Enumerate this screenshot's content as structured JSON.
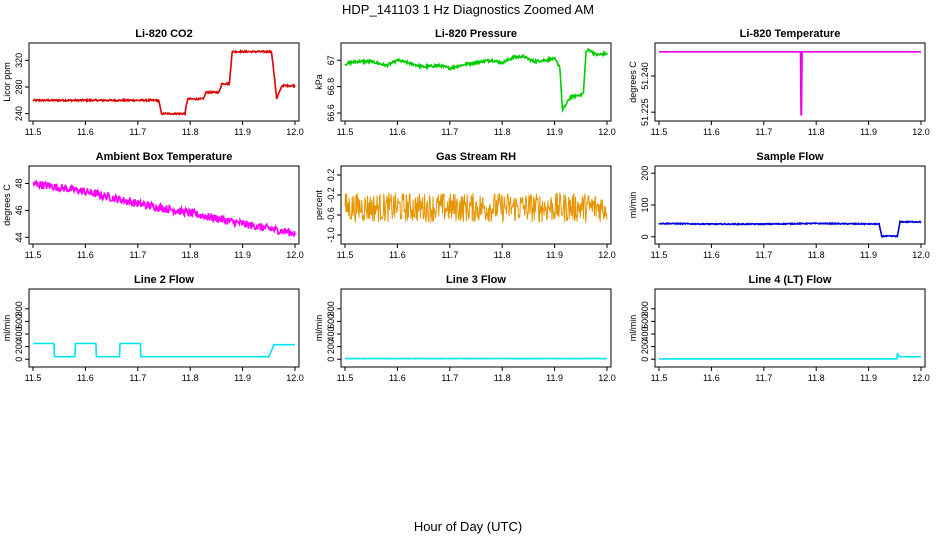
{
  "figure": {
    "title": "HDP_141103  1 Hz Diagnostics Zoomed AM",
    "xlabel": "Hour of Day (UTC)"
  },
  "chart_data": [
    {
      "type": "line",
      "title": "Li-820 CO2",
      "ylabel": "Licor ppm",
      "color": "#dd0000",
      "xlim": [
        11.5,
        12.0
      ],
      "ylim": [
        235,
        340
      ],
      "xticks": [
        "11.5",
        "11.6",
        "11.7",
        "11.8",
        "11.9",
        "12.0"
      ],
      "yticks": [
        240,
        280,
        320
      ],
      "x": [
        11.5,
        11.74,
        11.745,
        11.79,
        11.795,
        11.825,
        11.83,
        11.855,
        11.86,
        11.875,
        11.88,
        11.955,
        11.96,
        11.965,
        11.975,
        12.0
      ],
      "y": [
        260,
        260,
        240,
        240,
        262,
        262,
        272,
        272,
        285,
        285,
        333,
        333,
        300,
        262,
        282,
        282
      ],
      "noise": 1.2
    },
    {
      "type": "line",
      "title": "Li-820 Pressure",
      "ylabel": "kPa",
      "color": "#00cc00",
      "xlim": [
        11.5,
        12.0
      ],
      "ylim": [
        66.57,
        67.1
      ],
      "xticks": [
        "11.5",
        "11.6",
        "11.7",
        "11.8",
        "11.9",
        "12.0"
      ],
      "yticks": [
        66.6,
        66.8,
        67.0
      ],
      "x": [
        11.5,
        11.52,
        11.55,
        11.58,
        11.6,
        11.62,
        11.65,
        11.68,
        11.7,
        11.73,
        11.76,
        11.78,
        11.8,
        11.82,
        11.84,
        11.86,
        11.88,
        11.9,
        11.91,
        11.915,
        11.93,
        11.94,
        11.95,
        11.955,
        11.96,
        11.965,
        11.98,
        12.0
      ],
      "y": [
        66.97,
        66.99,
        66.99,
        66.96,
        67.0,
        66.98,
        66.95,
        66.96,
        66.94,
        66.97,
        66.99,
        67.0,
        66.98,
        67.02,
        67.03,
        66.99,
        67.0,
        67.01,
        66.95,
        66.62,
        66.72,
        66.73,
        66.74,
        66.75,
        67.06,
        67.08,
        67.04,
        67.05
      ],
      "noise": 0.01
    },
    {
      "type": "line",
      "title": "Li-820 Temperature",
      "ylabel": "degrees C",
      "color": "#ee00ee",
      "xlim": [
        11.5,
        12.0
      ],
      "ylim": [
        51.223,
        51.252
      ],
      "xticks": [
        "11.5",
        "11.6",
        "11.7",
        "11.8",
        "11.9",
        "12.0"
      ],
      "yticks": [
        51.225,
        51.24
      ],
      "ytick_labels": [
        "51.225",
        "51.240"
      ],
      "x": [
        11.5,
        11.77,
        11.771,
        11.772,
        11.773,
        12.0
      ],
      "y": [
        51.25,
        51.25,
        51.224,
        51.224,
        51.25,
        51.25
      ],
      "noise": 0
    },
    {
      "type": "line",
      "title": "Ambient Box Temperature",
      "ylabel": "degrees C",
      "color": "#ff00ff",
      "xlim": [
        11.5,
        12.0
      ],
      "ylim": [
        43.8,
        49.0
      ],
      "xticks": [
        "11.5",
        "11.6",
        "11.7",
        "11.8",
        "11.9",
        "12.0"
      ],
      "yticks": [
        44,
        46,
        48
      ],
      "x": [
        11.5,
        11.6,
        11.7,
        11.8,
        11.9,
        12.0
      ],
      "y": [
        48.0,
        47.4,
        46.5,
        45.8,
        45.0,
        44.3
      ],
      "noise": 0.3
    },
    {
      "type": "line",
      "title": "Gas Stream RH",
      "ylabel": "percent",
      "color": "#e69500",
      "xlim": [
        11.5,
        12.0
      ],
      "ylim": [
        -1.1,
        0.3
      ],
      "xticks": [
        "11.5",
        "11.6",
        "11.7",
        "11.8",
        "11.9",
        "12.0"
      ],
      "yticks": [
        -1.0,
        -0.6,
        -0.2,
        0.2
      ],
      "ytick_labels": [
        "-1.0",
        "-0.6",
        "-0.2",
        "0.2"
      ],
      "x": [
        11.5,
        12.0
      ],
      "y": [
        -0.45,
        -0.45
      ],
      "noise": 0.3
    },
    {
      "type": "line",
      "title": "Sample Flow",
      "ylabel": "ml/min",
      "color": "#0000dd",
      "xlim": [
        11.5,
        12.0
      ],
      "ylim": [
        -10,
        210
      ],
      "xticks": [
        "11.5",
        "11.6",
        "11.7",
        "11.8",
        "11.9",
        "12.0"
      ],
      "yticks": [
        0,
        100,
        200
      ],
      "x": [
        11.5,
        11.6,
        11.7,
        11.8,
        11.92,
        11.925,
        11.955,
        11.96,
        12.0
      ],
      "y": [
        42,
        40,
        40,
        42,
        40,
        2,
        2,
        47,
        47
      ],
      "noise": 1.5
    },
    {
      "type": "line",
      "title": "Line 2 Flow",
      "ylabel": "ml/min",
      "color": "#00e5ee",
      "xlim": [
        11.5,
        12.0
      ],
      "ylim": [
        -60,
        1050
      ],
      "xticks": [
        "11.5",
        "11.6",
        "11.7",
        "11.8",
        "11.9",
        "12.0"
      ],
      "yticks": [
        0,
        200,
        400,
        600,
        800
      ],
      "x": [
        11.5,
        11.54,
        11.541,
        11.58,
        11.581,
        11.62,
        11.621,
        11.665,
        11.666,
        11.705,
        11.706,
        11.95,
        11.96,
        12.0
      ],
      "y": [
        250,
        250,
        40,
        40,
        250,
        250,
        40,
        40,
        250,
        250,
        40,
        40,
        230,
        230
      ],
      "noise": 0
    },
    {
      "type": "line",
      "title": "Line 3 Flow",
      "ylabel": "ml/min",
      "color": "#00e5ee",
      "xlim": [
        11.5,
        12.0
      ],
      "ylim": [
        -60,
        1050
      ],
      "xticks": [
        "11.5",
        "11.6",
        "11.7",
        "11.8",
        "11.9",
        "12.0"
      ],
      "yticks": [
        0,
        200,
        400,
        600,
        800
      ],
      "x": [
        11.5,
        12.0
      ],
      "y": [
        10,
        10
      ],
      "noise": 3
    },
    {
      "type": "line",
      "title": "Line 4 (LT) Flow",
      "ylabel": "ml/min",
      "color": "#00e5ee",
      "xlim": [
        11.5,
        12.0
      ],
      "ylim": [
        -60,
        1050
      ],
      "xticks": [
        "11.5",
        "11.6",
        "11.7",
        "11.8",
        "11.9",
        "12.0"
      ],
      "yticks": [
        0,
        200,
        400,
        600,
        800
      ],
      "x": [
        11.5,
        11.954,
        11.955,
        11.957,
        11.958,
        12.0
      ],
      "y": [
        5,
        5,
        100,
        60,
        40,
        40
      ],
      "noise": 0
    }
  ]
}
